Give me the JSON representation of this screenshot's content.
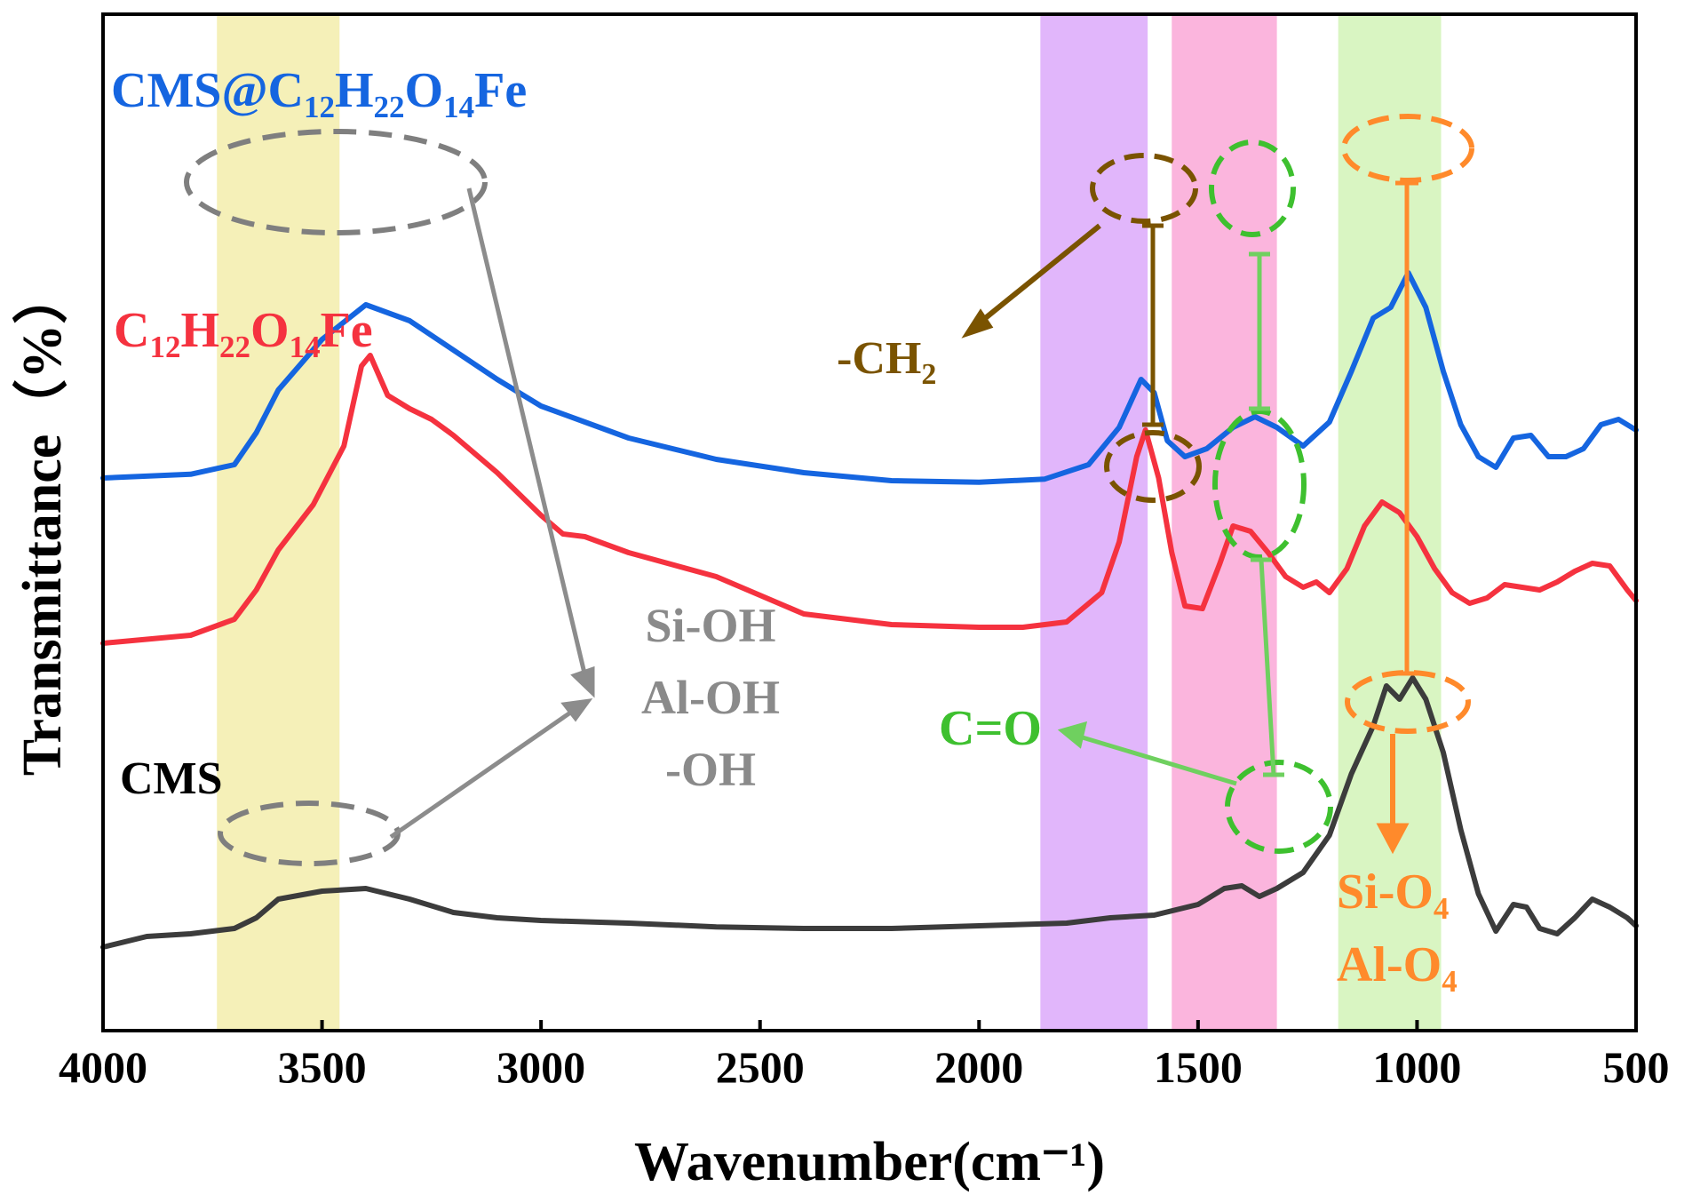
{
  "chart_data": {
    "type": "line",
    "title": "",
    "xlabel": "Wavenumber(cm⁻¹)",
    "ylabel": "Transmittance（%）",
    "xlim": [
      4000,
      500
    ],
    "x_ticks": [
      "4000",
      "3500",
      "3000",
      "2500",
      "2000",
      "1500",
      "1000",
      "500"
    ],
    "bands": [
      {
        "from": 3740,
        "to": 3460,
        "color": "#f5f0b8"
      },
      {
        "from": 1860,
        "to": 1615,
        "color": "#e1b6fb"
      },
      {
        "from": 1560,
        "to": 1320,
        "color": "#fbb5dd"
      },
      {
        "from": 1180,
        "to": 945,
        "color": "#d9f5c2"
      }
    ],
    "series": [
      {
        "name": "CMS@C₁₂H₂₂O₁₄Fe",
        "label_parts": [
          [
            "CMS@C",
            ""
          ],
          [
            "12",
            "sub"
          ],
          [
            "H",
            ""
          ],
          [
            "22",
            "sub"
          ],
          [
            "O",
            ""
          ],
          [
            "14",
            "sub"
          ],
          [
            "Fe",
            ""
          ]
        ],
        "color": "#1565e0",
        "points": [
          [
            4000,
            4.7
          ],
          [
            3800,
            4.77
          ],
          [
            3700,
            4.95
          ],
          [
            3650,
            5.55
          ],
          [
            3600,
            6.35
          ],
          [
            3500,
            7.3
          ],
          [
            3400,
            7.95
          ],
          [
            3300,
            7.65
          ],
          [
            3200,
            7.1
          ],
          [
            3100,
            6.55
          ],
          [
            3000,
            6.05
          ],
          [
            2900,
            5.75
          ],
          [
            2800,
            5.45
          ],
          [
            2600,
            5.05
          ],
          [
            2400,
            4.8
          ],
          [
            2200,
            4.65
          ],
          [
            2000,
            4.62
          ],
          [
            1850,
            4.68
          ],
          [
            1750,
            4.95
          ],
          [
            1680,
            5.65
          ],
          [
            1630,
            6.55
          ],
          [
            1600,
            6.3
          ],
          [
            1570,
            5.4
          ],
          [
            1530,
            5.1
          ],
          [
            1480,
            5.25
          ],
          [
            1420,
            5.65
          ],
          [
            1370,
            5.85
          ],
          [
            1320,
            5.65
          ],
          [
            1260,
            5.3
          ],
          [
            1200,
            5.75
          ],
          [
            1150,
            6.7
          ],
          [
            1100,
            7.7
          ],
          [
            1060,
            7.9
          ],
          [
            1020,
            8.55
          ],
          [
            980,
            7.9
          ],
          [
            940,
            6.7
          ],
          [
            900,
            5.7
          ],
          [
            860,
            5.1
          ],
          [
            820,
            4.9
          ],
          [
            780,
            5.45
          ],
          [
            740,
            5.5
          ],
          [
            700,
            5.1
          ],
          [
            660,
            5.1
          ],
          [
            620,
            5.25
          ],
          [
            580,
            5.7
          ],
          [
            540,
            5.8
          ],
          [
            500,
            5.6
          ]
        ]
      },
      {
        "name": "C₁₂H₂₂O₁₄Fe",
        "label_parts": [
          [
            "C",
            ""
          ],
          [
            "12",
            "sub"
          ],
          [
            "H",
            ""
          ],
          [
            "22",
            "sub"
          ],
          [
            "O",
            ""
          ],
          [
            "14",
            "sub"
          ],
          [
            "Fe",
            ""
          ]
        ],
        "color": "#f5323f",
        "points": [
          [
            4000,
            1.6
          ],
          [
            3800,
            1.75
          ],
          [
            3700,
            2.05
          ],
          [
            3650,
            2.6
          ],
          [
            3600,
            3.35
          ],
          [
            3520,
            4.2
          ],
          [
            3450,
            5.3
          ],
          [
            3410,
            6.8
          ],
          [
            3390,
            7.0
          ],
          [
            3350,
            6.25
          ],
          [
            3300,
            6.0
          ],
          [
            3250,
            5.8
          ],
          [
            3200,
            5.5
          ],
          [
            3100,
            4.8
          ],
          [
            3000,
            4.0
          ],
          [
            2950,
            3.65
          ],
          [
            2900,
            3.6
          ],
          [
            2800,
            3.3
          ],
          [
            2600,
            2.85
          ],
          [
            2400,
            2.15
          ],
          [
            2200,
            1.95
          ],
          [
            2000,
            1.9
          ],
          [
            1900,
            1.9
          ],
          [
            1800,
            2.0
          ],
          [
            1720,
            2.55
          ],
          [
            1680,
            3.5
          ],
          [
            1640,
            5.1
          ],
          [
            1620,
            5.6
          ],
          [
            1590,
            4.7
          ],
          [
            1560,
            3.3
          ],
          [
            1530,
            2.3
          ],
          [
            1490,
            2.25
          ],
          [
            1450,
            3.1
          ],
          [
            1420,
            3.8
          ],
          [
            1380,
            3.7
          ],
          [
            1340,
            3.3
          ],
          [
            1300,
            2.85
          ],
          [
            1260,
            2.65
          ],
          [
            1230,
            2.75
          ],
          [
            1200,
            2.55
          ],
          [
            1160,
            3.0
          ],
          [
            1120,
            3.8
          ],
          [
            1080,
            4.25
          ],
          [
            1040,
            4.05
          ],
          [
            1000,
            3.6
          ],
          [
            960,
            3.0
          ],
          [
            920,
            2.55
          ],
          [
            880,
            2.35
          ],
          [
            840,
            2.45
          ],
          [
            800,
            2.7
          ],
          [
            760,
            2.65
          ],
          [
            720,
            2.6
          ],
          [
            680,
            2.75
          ],
          [
            640,
            2.95
          ],
          [
            600,
            3.1
          ],
          [
            560,
            3.05
          ],
          [
            520,
            2.6
          ],
          [
            500,
            2.4
          ]
        ]
      },
      {
        "name": "CMS",
        "label_parts": [
          [
            "CMS",
            ""
          ]
        ],
        "color": "#3c3c3c",
        "points": [
          [
            4000,
            -4.1
          ],
          [
            3900,
            -3.9
          ],
          [
            3800,
            -3.85
          ],
          [
            3700,
            -3.75
          ],
          [
            3650,
            -3.55
          ],
          [
            3600,
            -3.2
          ],
          [
            3500,
            -3.05
          ],
          [
            3400,
            -3.0
          ],
          [
            3300,
            -3.2
          ],
          [
            3200,
            -3.45
          ],
          [
            3100,
            -3.55
          ],
          [
            3000,
            -3.6
          ],
          [
            2800,
            -3.65
          ],
          [
            2600,
            -3.72
          ],
          [
            2400,
            -3.75
          ],
          [
            2200,
            -3.75
          ],
          [
            2000,
            -3.7
          ],
          [
            1800,
            -3.65
          ],
          [
            1700,
            -3.55
          ],
          [
            1600,
            -3.5
          ],
          [
            1500,
            -3.3
          ],
          [
            1440,
            -3.0
          ],
          [
            1400,
            -2.95
          ],
          [
            1360,
            -3.15
          ],
          [
            1320,
            -3.0
          ],
          [
            1260,
            -2.7
          ],
          [
            1200,
            -2.0
          ],
          [
            1150,
            -0.85
          ],
          [
            1100,
            0.05
          ],
          [
            1070,
            0.8
          ],
          [
            1040,
            0.55
          ],
          [
            1010,
            0.95
          ],
          [
            980,
            0.55
          ],
          [
            940,
            -0.45
          ],
          [
            900,
            -1.9
          ],
          [
            860,
            -3.1
          ],
          [
            820,
            -3.8
          ],
          [
            780,
            -3.3
          ],
          [
            750,
            -3.35
          ],
          [
            720,
            -3.75
          ],
          [
            680,
            -3.85
          ],
          [
            640,
            -3.55
          ],
          [
            600,
            -3.2
          ],
          [
            560,
            -3.35
          ],
          [
            520,
            -3.55
          ],
          [
            500,
            -3.7
          ]
        ]
      }
    ],
    "annotations": {
      "ch2": {
        "label": "-CH",
        "sub": "2"
      },
      "co": {
        "label": "C=O"
      },
      "oh": {
        "lines": [
          "Si-OH",
          "Al-OH",
          "-OH"
        ]
      },
      "sio4": {
        "parts": [
          [
            "Si-O",
            ""
          ],
          [
            "4",
            "sub"
          ]
        ]
      },
      "alo4": {
        "parts": [
          [
            "Al-O",
            ""
          ],
          [
            "4",
            "sub"
          ]
        ]
      }
    },
    "colors": {
      "ch2": "#7a5300",
      "co": "#3ec02f",
      "oh": "#8a8a8a",
      "o4": "#ff8a2b"
    }
  }
}
